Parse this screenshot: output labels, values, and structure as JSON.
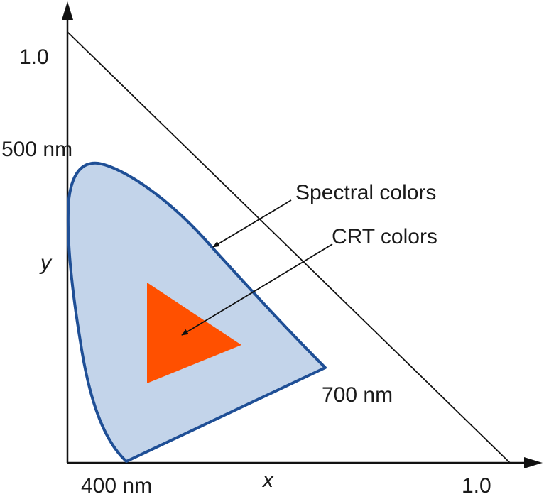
{
  "labels": {
    "y_max": "1.0",
    "x_max": "1.0",
    "nm_500": "500 nm",
    "nm_700": "700 nm",
    "nm_400": "400 nm",
    "y_axis": "y",
    "x_axis": "x",
    "spectral_colors": "Spectral colors",
    "crt_colors": "CRT colors"
  },
  "colors": {
    "spectral_fill": "#c3d4ea",
    "spectral_stroke": "#1f4f96",
    "crt_fill": "#ff5000",
    "lines": "#111111"
  }
}
